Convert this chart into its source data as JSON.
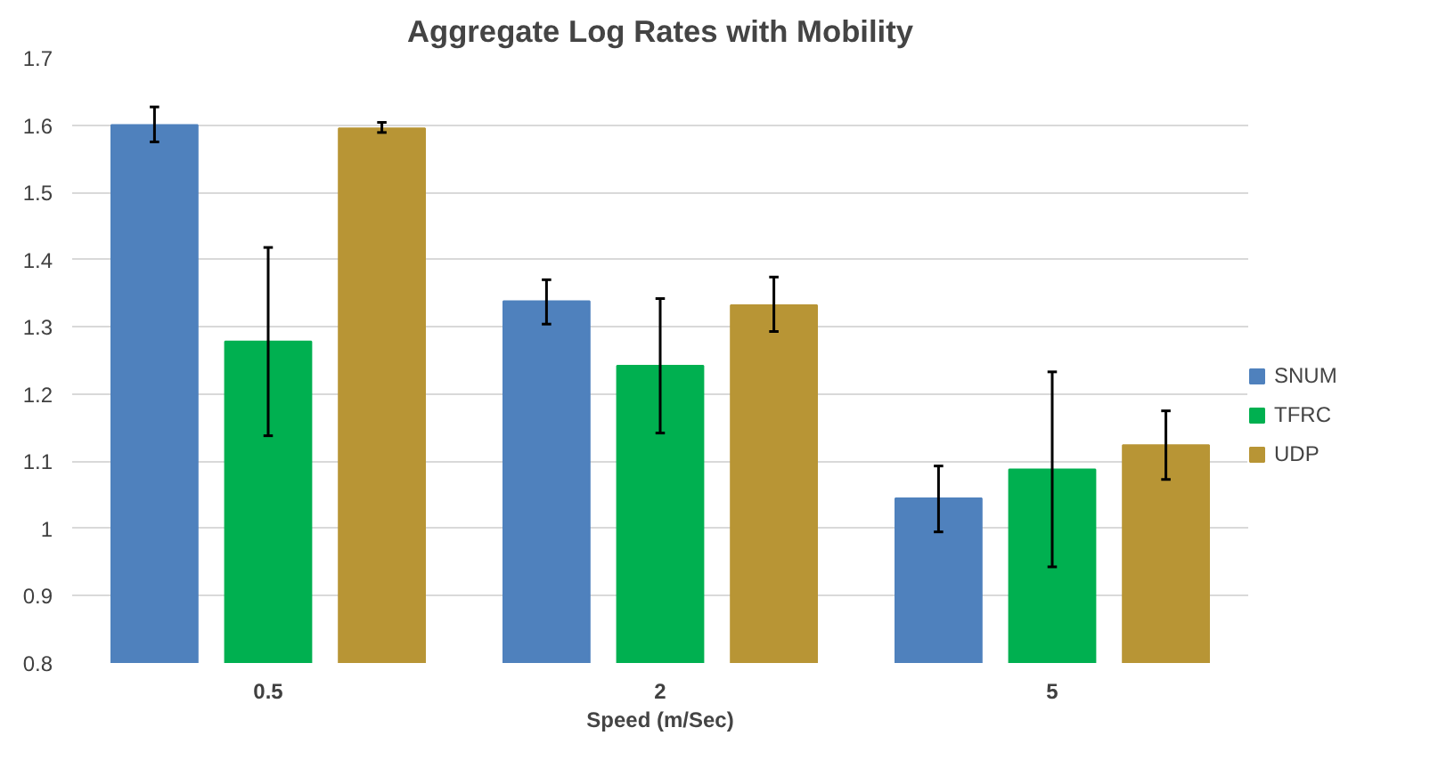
{
  "chart_data": {
    "type": "bar",
    "title": "Aggregate Log Rates with Mobility",
    "xlabel": "Speed (m/Sec)",
    "categories": [
      "0.5",
      "2",
      "5"
    ],
    "series": [
      {
        "name": "SNUM",
        "color": "#4f81bd",
        "values": [
          1.6,
          1.338,
          1.045
        ],
        "errors": [
          [
            1.575,
            1.627
          ],
          [
            1.304,
            1.37
          ],
          [
            0.995,
            1.093
          ]
        ]
      },
      {
        "name": "TFRC",
        "color": "#00b050",
        "values": [
          1.278,
          1.242,
          1.088
        ],
        "errors": [
          [
            1.138,
            1.418
          ],
          [
            1.142,
            1.342
          ],
          [
            0.943,
            1.233
          ]
        ]
      },
      {
        "name": "UDP",
        "color": "#b89535",
        "values": [
          1.595,
          1.332,
          1.124
        ],
        "errors": [
          [
            1.589,
            1.604
          ],
          [
            1.293,
            1.374
          ],
          [
            1.073,
            1.175
          ]
        ]
      }
    ],
    "ylim": [
      0.8,
      1.7
    ],
    "yticks": [
      0.8,
      0.9,
      1,
      1.1,
      1.2,
      1.3,
      1.4,
      1.5,
      1.6,
      1.7
    ],
    "grid": "y",
    "legend": "right"
  }
}
